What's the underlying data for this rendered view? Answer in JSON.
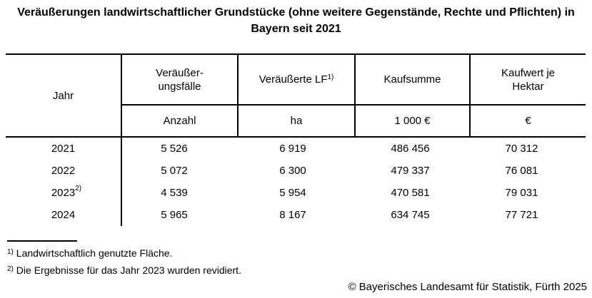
{
  "title": "Veräußerungen landwirtschaftlicher Grundstücke (ohne weitere Gegenstände, Rechte und Pflichten) in Bayern seit 2021",
  "table": {
    "headers": {
      "jahr": "Jahr",
      "faelle_line1": "Veräußer-",
      "faelle_line2": "ungsfälle",
      "lf": "Veräußerte LF",
      "lf_sup": "1)",
      "kaufsumme": "Kaufsumme",
      "kaufwert_line1": "Kaufwert je",
      "kaufwert_line2": "Hektar"
    },
    "units": {
      "faelle": "Anzahl",
      "lf": "ha",
      "kaufsumme": "1 000 €",
      "kaufwert": "€"
    },
    "rows": [
      {
        "year": "2021",
        "year_sup": "",
        "faelle": "5 526",
        "lf": "6 919",
        "kaufsumme": "486 456",
        "kaufwert": "70 312"
      },
      {
        "year": "2022",
        "year_sup": "",
        "faelle": "5 072",
        "lf": "6 300",
        "kaufsumme": "479 337",
        "kaufwert": "76 081"
      },
      {
        "year": "2023",
        "year_sup": "2)",
        "faelle": "4 539",
        "lf": "5 954",
        "kaufsumme": "470 581",
        "kaufwert": "79 031"
      },
      {
        "year": "2024",
        "year_sup": "",
        "faelle": "5 965",
        "lf": "8 167",
        "kaufsumme": "634 745",
        "kaufwert": "77 721"
      }
    ]
  },
  "footnotes": [
    {
      "marker": "1)",
      "text": "Landwirtschaftlich genutzte Fläche."
    },
    {
      "marker": "2)",
      "text": "Die Ergebnisse für das Jahr 2023 wurden revidiert."
    }
  ],
  "copyright": "© Bayerisches Landesamt für Statistik, Fürth 2025",
  "chart_data": {
    "type": "table",
    "title": "Veräußerungen landwirtschaftlicher Grundstücke (ohne weitere Gegenstände, Rechte und Pflichten) in Bayern seit 2021",
    "columns": [
      "Jahr",
      "Veräußerungsfälle (Anzahl)",
      "Veräußerte LF (ha)",
      "Kaufsumme (1 000 €)",
      "Kaufwert je Hektar (€)"
    ],
    "rows": [
      [
        "2021",
        5526,
        6919,
        486456,
        70312
      ],
      [
        "2022",
        5072,
        6300,
        479337,
        76081
      ],
      [
        "2023",
        4539,
        5954,
        470581,
        79031
      ],
      [
        "2024",
        5965,
        8167,
        634745,
        77721
      ]
    ],
    "footnotes": [
      "1) Landwirtschaftlich genutzte Fläche.",
      "2) Die Ergebnisse für das Jahr 2023 wurden revidiert."
    ],
    "source": "© Bayerisches Landesamt für Statistik, Fürth 2025"
  }
}
